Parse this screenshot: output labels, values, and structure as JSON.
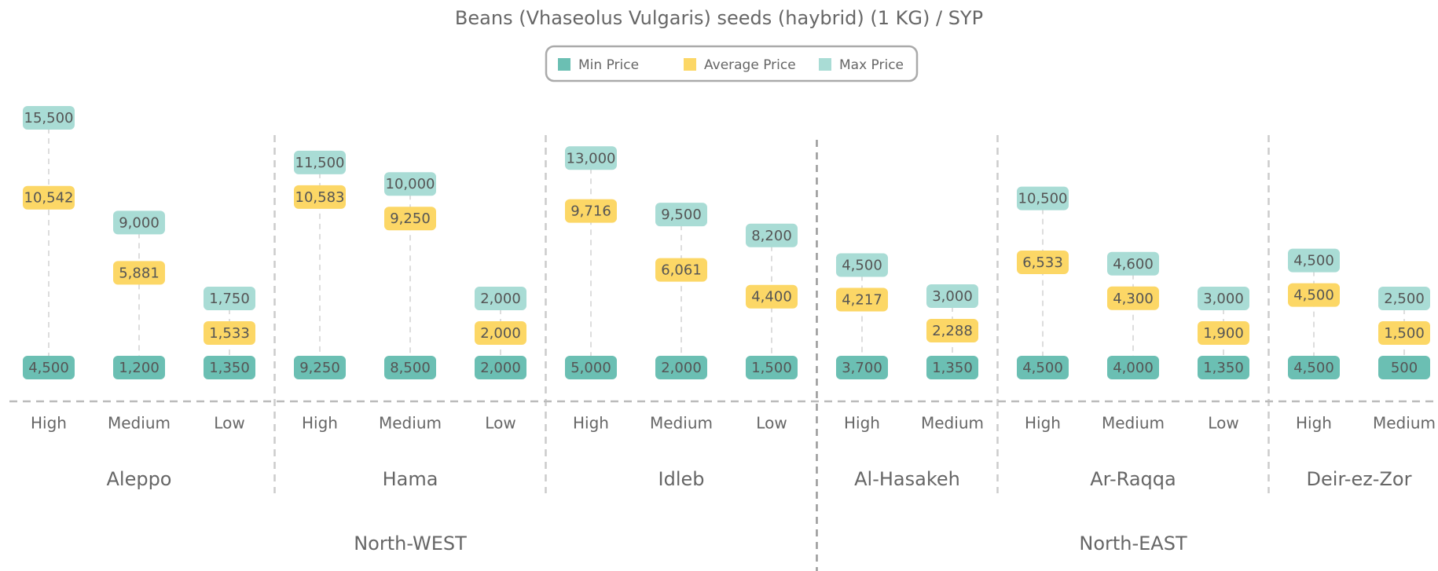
{
  "chart_data": {
    "type": "dot",
    "title": "Beans (Vhaseolus Vulgaris) seeds (haybrid) (1 KG) / SYP",
    "regions": [
      {
        "name": "North-WEST",
        "groups": [
          {
            "name": "Aleppo",
            "categories": [
              "High",
              "Medium",
              "Low"
            ]
          },
          {
            "name": "Hama",
            "categories": [
              "High",
              "Medium",
              "Low"
            ]
          },
          {
            "name": "Idleb",
            "categories": [
              "High",
              "Medium",
              "Low"
            ]
          }
        ]
      },
      {
        "name": "North-EAST",
        "groups": [
          {
            "name": "Al-Hasakeh",
            "categories": [
              "High",
              "Medium"
            ]
          },
          {
            "name": "Ar-Raqqa",
            "categories": [
              "High",
              "Medium",
              "Low"
            ]
          },
          {
            "name": "Deir-ez-Zor",
            "categories": [
              "High",
              "Medium"
            ]
          }
        ]
      }
    ],
    "series": [
      {
        "name": "Min Price",
        "color": "#6bbfb3",
        "values": [
          4500,
          1200,
          1350,
          9250,
          8500,
          2000,
          5000,
          2000,
          1500,
          3700,
          1350,
          4500,
          4000,
          1350,
          4500,
          500
        ],
        "value_labels": [
          "4,500",
          "1,200",
          "1,350",
          "9,250",
          "8,500",
          "2,000",
          "5,000",
          "2,000",
          "1,500",
          "3,700",
          "1,350",
          "4,500",
          "4,000",
          "1,350",
          "4,500",
          "500"
        ]
      },
      {
        "name": "Average Price",
        "color": "#fcd766",
        "values": [
          10542,
          5881,
          1533,
          10583,
          9250,
          2000,
          9716,
          6061,
          4400,
          4217,
          2288,
          6533,
          4300,
          1900,
          4500,
          1500
        ],
        "value_labels": [
          "10,542",
          "5,881",
          "1,533",
          "10,583",
          "9,250",
          "2,000",
          "9,716",
          "6,061",
          "4,400",
          "4,217",
          "2,288",
          "6,533",
          "4,300",
          "1,900",
          "4,500",
          "1,500"
        ]
      },
      {
        "name": "Max Price",
        "color": "#a9dcd5",
        "values": [
          15500,
          9000,
          1750,
          11500,
          10000,
          2000,
          13000,
          9500,
          8200,
          4500,
          3000,
          10500,
          4600,
          3000,
          4500,
          2500
        ],
        "value_labels": [
          "15,500",
          "9,000",
          "1,750",
          "11,500",
          "10,000",
          "2,000",
          "13,000",
          "9,500",
          "8,200",
          "4,500",
          "3,000",
          "10,500",
          "4,600",
          "3,000",
          "4,500",
          "2,500"
        ]
      }
    ]
  }
}
